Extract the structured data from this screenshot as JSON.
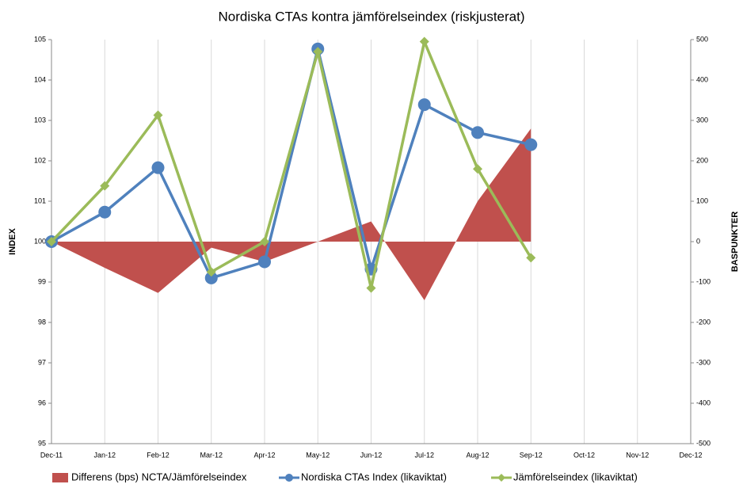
{
  "chart_data": {
    "type": "line",
    "title": "Nordiska CTAs kontra jämförelseindex (riskjusterat)",
    "y_label": "INDEX",
    "y2_label": "BASPUNKTER",
    "categories": [
      "Dec-11",
      "Jan-12",
      "Feb-12",
      "Mar-12",
      "Apr-12",
      "May-12",
      "Jun-12",
      "Jul-12",
      "Aug-12",
      "Sep-12",
      "Oct-12",
      "Nov-12",
      "Dec-12"
    ],
    "series": [
      {
        "name": "Differens (bps) NCTA/Jämförelseindex",
        "type": "area",
        "axis": "y2",
        "color": "#c0504d",
        "values": [
          0,
          -65,
          -127,
          -15,
          -50,
          0,
          50,
          -145,
          100,
          280,
          null,
          null,
          null
        ]
      },
      {
        "name": "Nordiska CTAs Index (likaviktat)",
        "type": "line",
        "marker": "circle",
        "color": "#4f81bd",
        "values": [
          100,
          100.73,
          101.83,
          99.1,
          99.5,
          104.77,
          99.32,
          103.39,
          102.7,
          102.4,
          null,
          null,
          null
        ]
      },
      {
        "name": "Jämförelseindex (likaviktat)",
        "type": "line",
        "marker": "diamond",
        "color": "#9bbb59",
        "values": [
          100,
          101.38,
          103.13,
          99.25,
          100,
          104.7,
          98.85,
          104.95,
          101.8,
          99.6,
          null,
          null,
          null
        ]
      }
    ],
    "ylim": [
      95,
      105
    ],
    "yticks": [
      95,
      96,
      97,
      98,
      99,
      100,
      101,
      102,
      103,
      104,
      105
    ],
    "y2lim": [
      -500,
      500
    ],
    "y2ticks": [
      -500,
      -400,
      -300,
      -200,
      -100,
      0,
      100,
      200,
      300,
      400,
      500
    ],
    "grid": "x",
    "legend": "bottom"
  }
}
